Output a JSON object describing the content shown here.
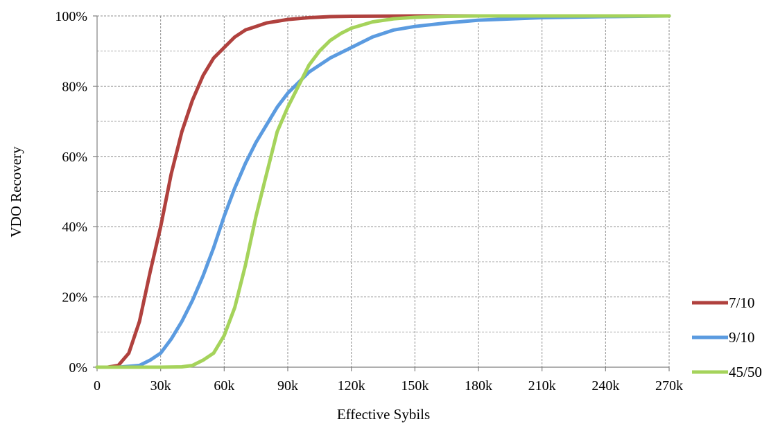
{
  "chart_data": {
    "type": "line",
    "title": "",
    "xlabel": "Effective Sybils",
    "ylabel": "VDO Recovery",
    "x_ticks": [
      "0",
      "30k",
      "60k",
      "90k",
      "120k",
      "150k",
      "180k",
      "210k",
      "240k",
      "270k"
    ],
    "y_ticks": [
      "0%",
      "20%",
      "40%",
      "60%",
      "80%",
      "100%"
    ],
    "xlim": [
      0,
      270000
    ],
    "ylim": [
      0,
      100
    ],
    "grid": true,
    "legend_position": "right",
    "series": [
      {
        "name": "7/10",
        "color": "#b0413e",
        "x": [
          0,
          5000,
          10000,
          15000,
          20000,
          25000,
          30000,
          35000,
          40000,
          45000,
          50000,
          55000,
          60000,
          65000,
          70000,
          75000,
          80000,
          90000,
          100000,
          110000,
          120000,
          150000,
          270000
        ],
        "y": [
          0,
          0,
          0.5,
          4,
          13,
          27,
          40,
          55,
          67,
          76,
          83,
          88,
          91,
          94,
          96,
          97,
          98,
          99,
          99.5,
          99.8,
          99.9,
          100,
          100
        ]
      },
      {
        "name": "9/10",
        "color": "#5b9be0",
        "x": [
          0,
          10000,
          20000,
          25000,
          30000,
          35000,
          40000,
          45000,
          50000,
          55000,
          60000,
          65000,
          70000,
          75000,
          80000,
          85000,
          90000,
          95000,
          100000,
          110000,
          120000,
          130000,
          140000,
          150000,
          165000,
          180000,
          210000,
          240000,
          270000
        ],
        "y": [
          0,
          0,
          0.5,
          2,
          4,
          8,
          13,
          19,
          26,
          34,
          43,
          51,
          58,
          64,
          69,
          74,
          78,
          81,
          84,
          88,
          91,
          94,
          96,
          97,
          98,
          98.8,
          99.5,
          99.8,
          100
        ]
      },
      {
        "name": "45/50",
        "color": "#a5d35b",
        "x": [
          0,
          30000,
          40000,
          45000,
          50000,
          55000,
          60000,
          65000,
          70000,
          75000,
          80000,
          85000,
          90000,
          95000,
          100000,
          105000,
          110000,
          115000,
          120000,
          130000,
          140000,
          150000,
          165000,
          180000,
          270000
        ],
        "y": [
          0,
          0,
          0.1,
          0.5,
          2,
          4,
          9,
          17,
          29,
          43,
          55,
          67,
          74,
          80,
          86,
          90,
          93,
          95,
          96.5,
          98.3,
          99.2,
          99.6,
          99.9,
          100,
          100
        ]
      }
    ]
  }
}
